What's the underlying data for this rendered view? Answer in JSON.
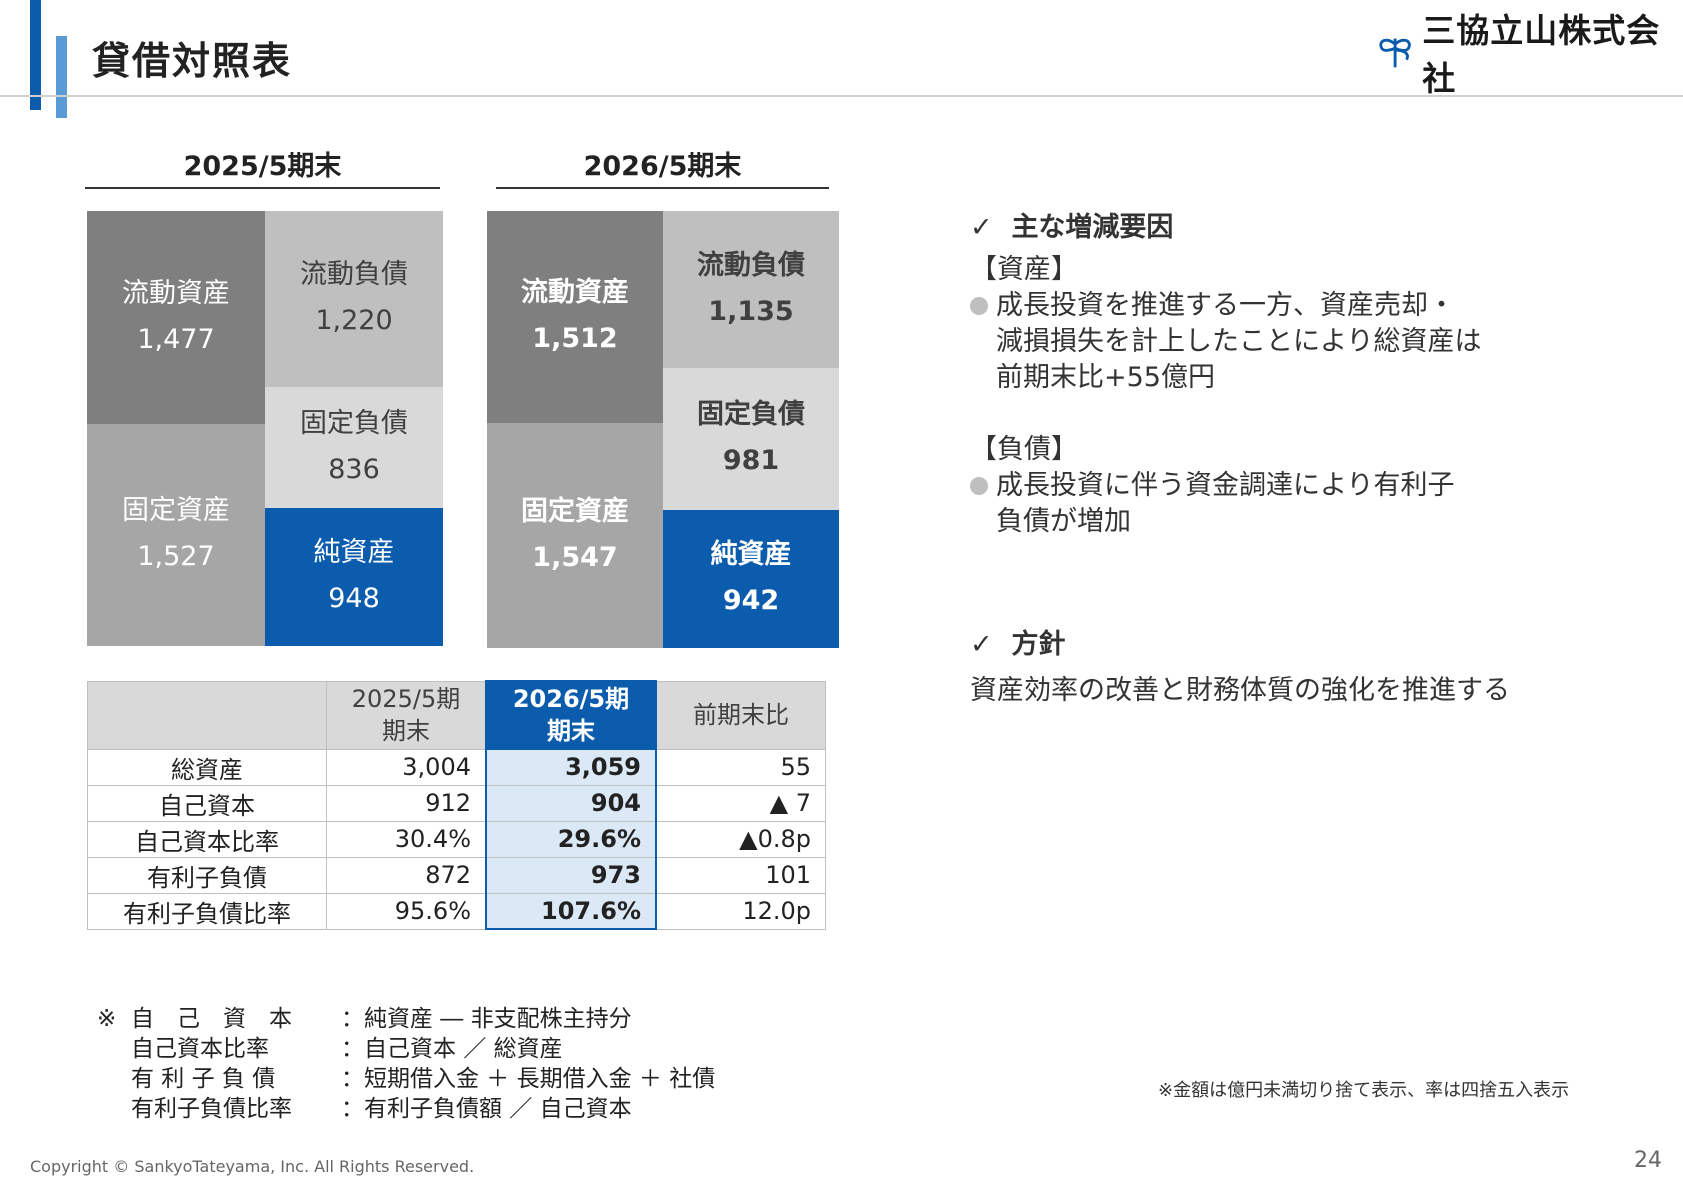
{
  "header": {
    "title": "貸借対照表",
    "company": "三協立山株式会社",
    "logo_icon": "sankyo-clover-icon"
  },
  "periods": [
    "2025/5期末",
    "2026/5期末"
  ],
  "bs_prev": {
    "current_assets": {
      "label": "流動資産",
      "value": "1,477"
    },
    "fixed_assets": {
      "label": "固定資産",
      "value": "1,527"
    },
    "current_liab": {
      "label": "流動負債",
      "value": "1,220"
    },
    "fixed_liab": {
      "label": "固定負債",
      "value": "836"
    },
    "net_assets": {
      "label": "純資産",
      "value": "948"
    }
  },
  "bs_curr": {
    "current_assets": {
      "label": "流動資産",
      "value": "1,512"
    },
    "fixed_assets": {
      "label": "固定資産",
      "value": "1,547"
    },
    "current_liab": {
      "label": "流動負債",
      "value": "1,135"
    },
    "fixed_liab": {
      "label": "固定負債",
      "value": "981"
    },
    "net_assets": {
      "label": "純資産",
      "value": "942"
    }
  },
  "table": {
    "headers": {
      "prev_line1": "2025/5期",
      "prev_line2": "期末",
      "curr_line1": "2026/5期",
      "curr_line2": "期末",
      "diff": "前期末比"
    },
    "rows": [
      {
        "name": "総資産",
        "prev": "3,004",
        "curr": "3,059",
        "diff": "55"
      },
      {
        "name": "自己資本",
        "prev": "912",
        "curr": "904",
        "diff": "▲ 7"
      },
      {
        "name": "自己資本比率",
        "prev": "30.4%",
        "curr": "29.6%",
        "diff": "▲0.8p"
      },
      {
        "name": "有利子負債",
        "prev": "872",
        "curr": "973",
        "diff": "101"
      },
      {
        "name": "有利子負債比率",
        "prev": "95.6%",
        "curr": "107.6%",
        "diff": "12.0p"
      }
    ]
  },
  "factors": {
    "check": "✓",
    "heading": "主な増減要因",
    "assets_tag": "【資産】",
    "assets_lines": [
      "成長投資を推進する一方、資産売却・",
      "減損損失を計上したことにより総資産は",
      "前期末比+55億円"
    ],
    "liab_tag": "【負債】",
    "liab_lines": [
      "成長投資に伴う資金調達により有利子",
      "負債が増加"
    ]
  },
  "policy": {
    "check": "✓",
    "heading": "方針",
    "text": "資産効率の改善と財務体質の強化を推進する"
  },
  "notes": {
    "mark": "※",
    "lines": [
      {
        "term": "自　己　資　本",
        "def": "：純資産 ― 非支配株主持分"
      },
      {
        "term": "自己資本比率",
        "def": "：自己資本 ／ 総資産"
      },
      {
        "term": "有 利 子 負 債",
        "def": "：短期借入金 ＋ 長期借入金 ＋ 社債"
      },
      {
        "term": "有利子負債比率",
        "def": "：有利子負債額 ／ 自己資本"
      }
    ],
    "rounding": "※金額は億円未満切り捨て表示、率は四捨五入表示"
  },
  "footer": {
    "copyright": "Copyright © SankyoTateyama, Inc. All Rights Reserved.",
    "page": "24"
  }
}
